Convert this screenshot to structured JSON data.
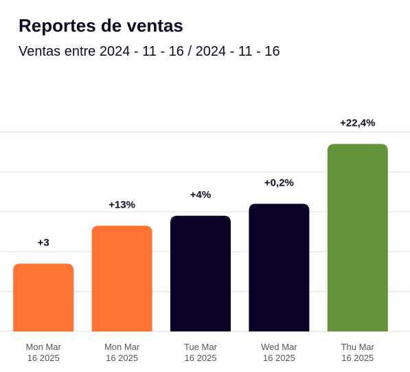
{
  "header": {
    "title": "Reportes de ventas",
    "subtitle": "Ventas entre 2024 - 11 - 16 / 2024 - 11 - 16"
  },
  "chart_data": {
    "type": "bar",
    "title": "Reportes de ventas",
    "subtitle": "Ventas entre 2024 - 11 - 16 / 2024 - 11 - 16",
    "categories": [
      [
        "Mon Mar",
        "16 2025"
      ],
      [
        "Mon Mar",
        "16 2025"
      ],
      [
        "Tue Mar",
        "16 2025"
      ],
      [
        "Wed Mar",
        "16 2025"
      ],
      [
        "Thu Mar",
        "16 2025"
      ]
    ],
    "values": [
      1.7,
      2.65,
      2.9,
      3.2,
      4.7
    ],
    "data_labels": [
      "+3",
      "+13%",
      "+4%",
      "+0,2%",
      "+22,4%"
    ],
    "colors": [
      "#ff7433",
      "#ff7433",
      "#0a0327",
      "#0a0327",
      "#63933b"
    ],
    "ylim": [
      0,
      5
    ],
    "grid": true,
    "xlabel": "",
    "ylabel": ""
  }
}
